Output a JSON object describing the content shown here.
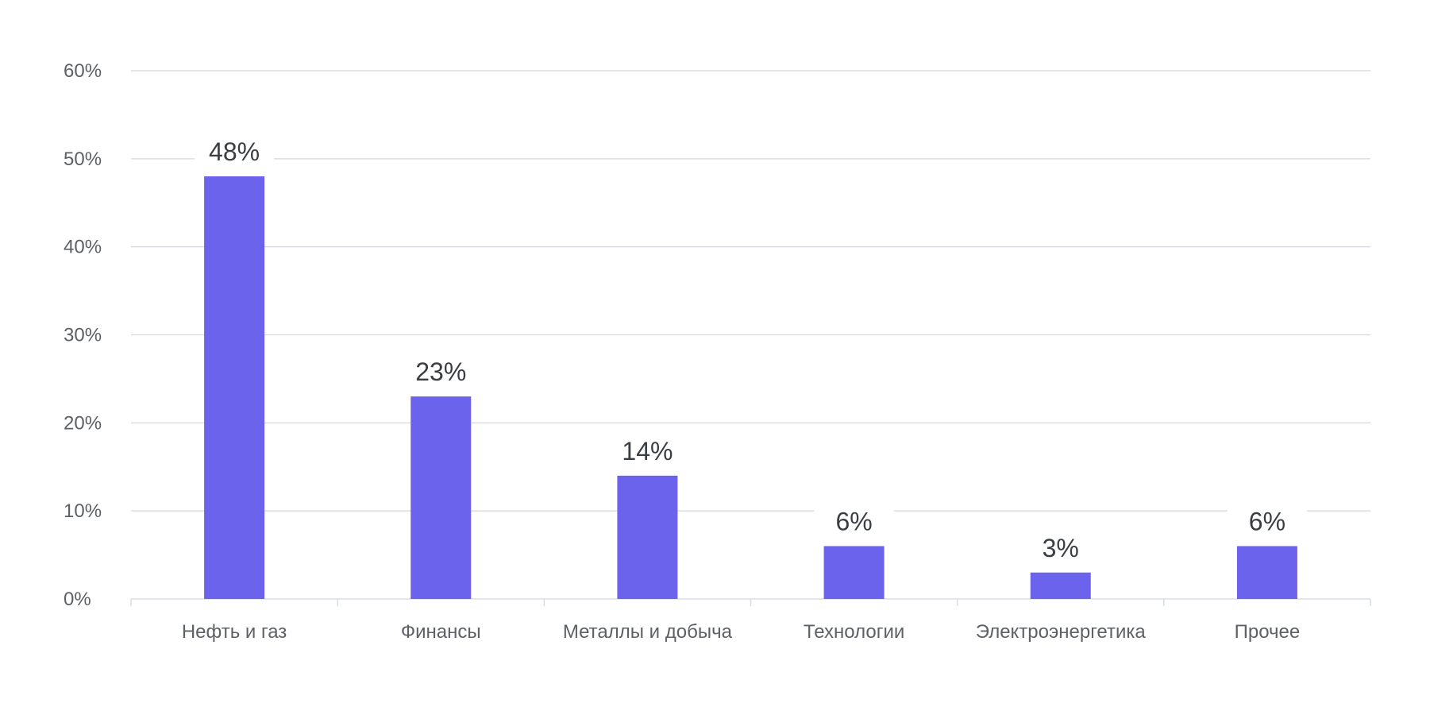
{
  "chart_data": {
    "type": "bar",
    "title": "",
    "xlabel": "",
    "ylabel": "",
    "categories": [
      "Нефть и газ",
      "Финансы",
      "Металлы и добыча",
      "Технологии",
      "Электроэнергетика",
      "Прочее"
    ],
    "values": [
      48,
      23,
      14,
      6,
      3,
      6
    ],
    "data_labels": [
      "48%",
      "23%",
      "14%",
      "6%",
      "3%",
      "6%"
    ],
    "ylim": [
      0,
      60
    ],
    "y_ticks": [
      0,
      10,
      20,
      30,
      40,
      50,
      60
    ],
    "y_tick_labels": [
      "0%",
      "10%",
      "20%",
      "30%",
      "40%",
      "50%",
      "60%"
    ],
    "grid": true,
    "legend": "none",
    "colors": {
      "bar": "#6c63ec",
      "grid": "#d9dde3",
      "text": "#5d6166",
      "label": "#3a3d42"
    }
  }
}
